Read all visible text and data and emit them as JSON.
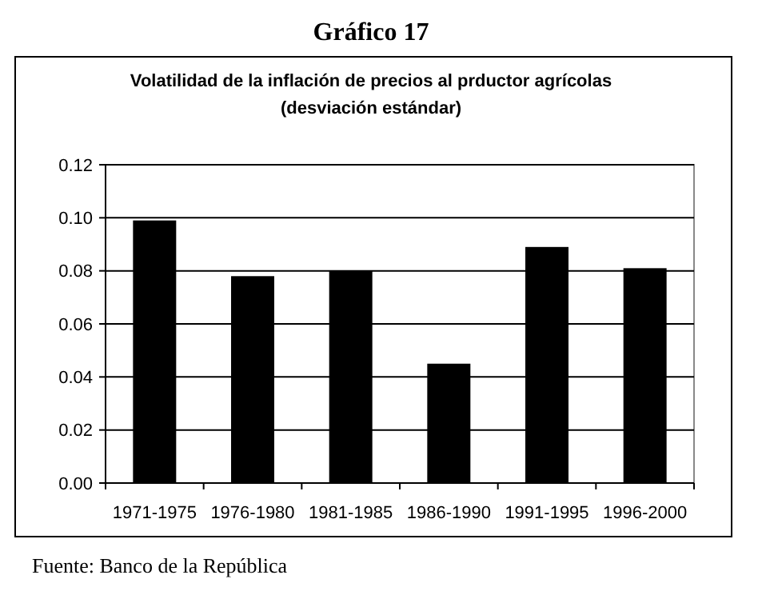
{
  "chart_data": {
    "type": "bar",
    "title": "Gráfico 17",
    "subtitle": "Volatilidad de la inflación de precios al prductor agrícolas\n(desviación estándar)",
    "categories": [
      "1971-1975",
      "1976-1980",
      "1981-1985",
      "1986-1990",
      "1991-1995",
      "1996-2000"
    ],
    "values": [
      0.099,
      0.078,
      0.08,
      0.045,
      0.089,
      0.081
    ],
    "color": "#000000",
    "ylim": [
      0,
      0.12
    ],
    "yticks": [
      {
        "value": 0,
        "label": "0.00"
      },
      {
        "value": 0.02,
        "label": "0.02"
      },
      {
        "value": 0.04,
        "label": "0.04"
      },
      {
        "value": 0.06,
        "label": "0.06"
      },
      {
        "value": 0.08,
        "label": "0.08"
      },
      {
        "value": 0.1,
        "label": "0.10"
      },
      {
        "value": 0.12,
        "label": "0.12"
      }
    ],
    "grid": "y",
    "annotations": [
      "Fuente: Banco de la República"
    ]
  }
}
